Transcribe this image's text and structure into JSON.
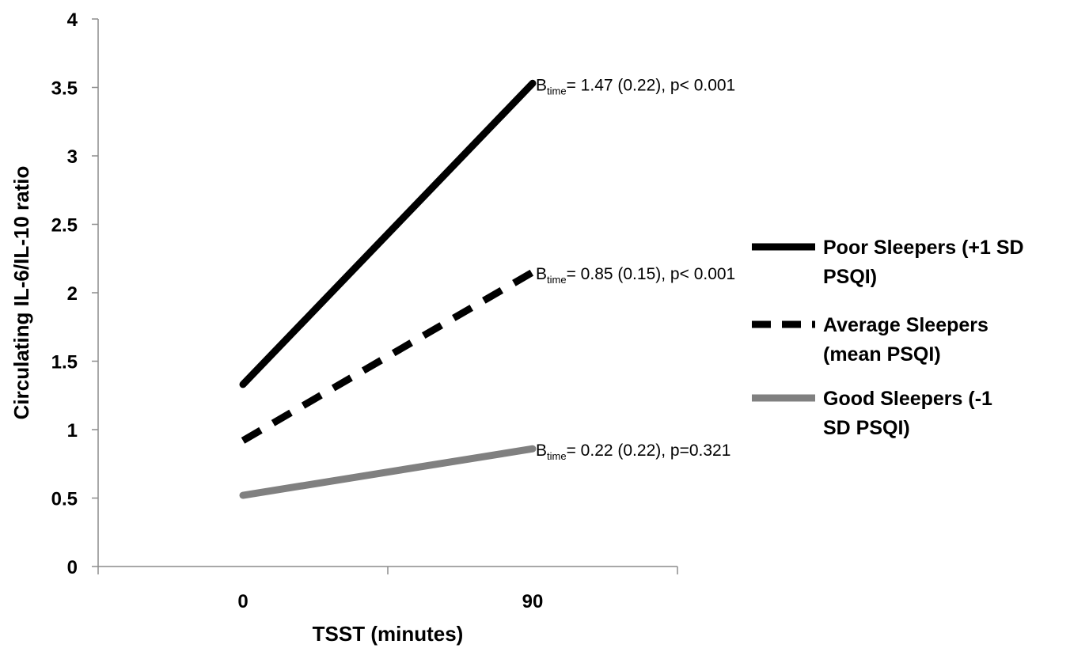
{
  "chart_data": {
    "type": "line",
    "title": "",
    "xlabel": "TSST (minutes)",
    "ylabel": "Circulating IL-6/IL-10 ratio",
    "categories": [
      "0",
      "90"
    ],
    "ylim": [
      0,
      4
    ],
    "y_ticks": [
      "0",
      "0.5",
      "1",
      "1.5",
      "2",
      "2.5",
      "3",
      "3.5",
      "4"
    ],
    "grid": false,
    "legend_position": "right",
    "series": [
      {
        "name": "Poor Sleepers (+1 SD PSQI)",
        "name_lines": [
          "Poor Sleepers (+1 SD",
          "PSQI)"
        ],
        "values": [
          1.33,
          3.53
        ],
        "color": "#000000",
        "style": "solid",
        "annotation": {
          "B": "B",
          "sub": "time",
          "text": "= 1.47 (0.22), p< 0.001"
        }
      },
      {
        "name": "Average Sleepers (mean PSQI)",
        "name_lines": [
          "Average Sleepers",
          "(mean PSQI)"
        ],
        "values": [
          0.92,
          2.15
        ],
        "color": "#000000",
        "style": "dashed",
        "annotation": {
          "B": "B",
          "sub": "time",
          "text": "= 0.85 (0.15), p< 0.001"
        }
      },
      {
        "name": "Good Sleepers (-1 SD PSQI)",
        "name_lines": [
          "Good Sleepers (-1",
          "SD PSQI)"
        ],
        "values": [
          0.52,
          0.86
        ],
        "color": "#808080",
        "style": "solid",
        "annotation": {
          "B": "B",
          "sub": "time",
          "text": "= 0.22 (0.22), p=0.321"
        }
      }
    ]
  }
}
